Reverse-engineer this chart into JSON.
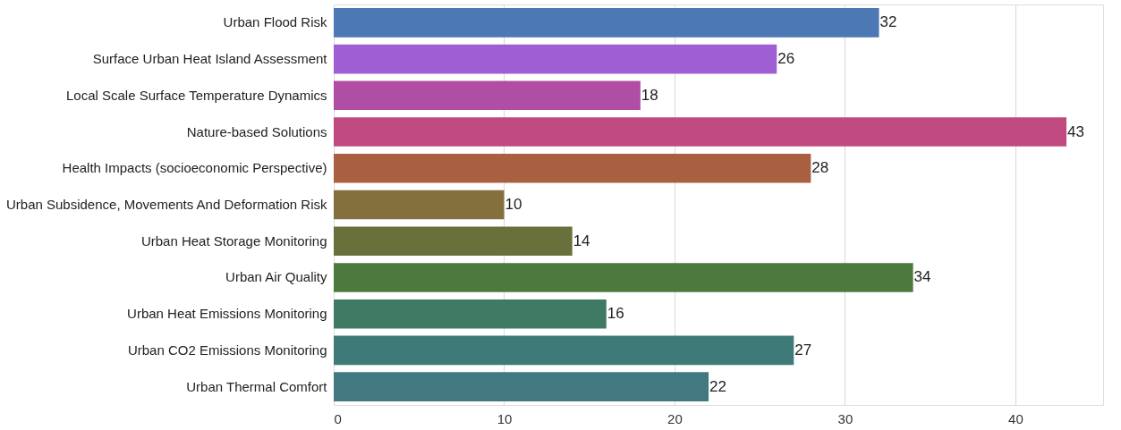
{
  "chart_data": {
    "type": "bar",
    "orientation": "horizontal",
    "categories": [
      "Urban Flood Risk",
      "Surface Urban Heat Island Assessment",
      "Local Scale Surface Temperature Dynamics",
      "Nature-based Solutions",
      "Health Impacts (socioeconomic Perspective)",
      "Urban Subsidence, Movements And Deformation Risk",
      "Urban Heat Storage Monitoring",
      "Urban Air Quality",
      "Urban Heat Emissions Monitoring",
      "Urban CO2 Emissions Monitoring",
      "Urban Thermal Comfort"
    ],
    "values": [
      32,
      26,
      18,
      43,
      28,
      10,
      14,
      34,
      16,
      27,
      22
    ],
    "colors": [
      "#4c78b4",
      "#9e5ed4",
      "#b04ea6",
      "#c04a80",
      "#a86040",
      "#84703c",
      "#6a703c",
      "#4c7a3c",
      "#3e7a64",
      "#3e7a78",
      "#427880"
    ],
    "xlim": [
      0,
      45.15
    ],
    "xticks": [
      0,
      10,
      20,
      30,
      40
    ],
    "grid": "x",
    "data_labels": true
  }
}
